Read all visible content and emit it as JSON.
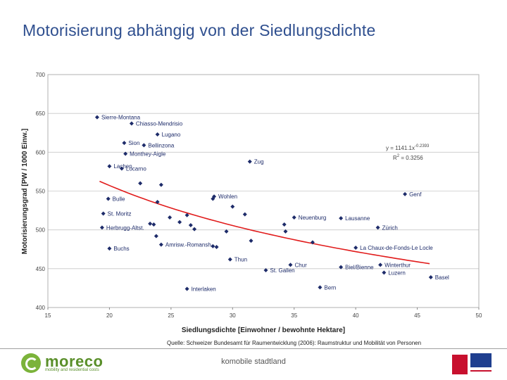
{
  "page": {
    "title": "Motorisierung abhängig von der Siedlungsdichte",
    "source": "Quelle: Schweizer Bundesamt für Raumentwicklung (2006): Raumstruktur und Mobilität von Personen",
    "footer_center": "komobile stadtland",
    "logo_left_text": "moreco",
    "logo_left_sub": "mobility and residential costs"
  },
  "colors": {
    "title": "#2f4f8f",
    "points": "#1e2c6a",
    "trend": "#e11b1b",
    "grid": "#c8c8c8"
  },
  "chart_data": {
    "type": "scatter",
    "xlabel": "Siedlungsdichte [Einwohner / bewohnte Hektare]",
    "ylabel": "Motorisierungsgrad [PW / 1000 Einw.]",
    "xlim": [
      15,
      50
    ],
    "ylim": [
      400,
      700
    ],
    "x_ticks": [
      15,
      20,
      25,
      30,
      35,
      40,
      45,
      50
    ],
    "y_ticks": [
      400,
      450,
      500,
      550,
      600,
      650,
      700
    ],
    "grid": "horizontal",
    "equation": "y = 1141.1x",
    "equation_exp": "-0.2393",
    "r2": "R",
    "r2_sup": "2",
    "r2_value": " = 0.3256",
    "trendline": {
      "a": 1141.1,
      "b": -0.2393,
      "x_from": 19.2,
      "x_to": 46.0
    },
    "points": [
      {
        "x": 19.0,
        "y": 645,
        "label": "Sierre-Montana"
      },
      {
        "x": 21.8,
        "y": 637,
        "label": "Chiasso-Mendrisio"
      },
      {
        "x": 23.9,
        "y": 623,
        "label": "Lugano"
      },
      {
        "x": 21.2,
        "y": 612,
        "label": "Sion"
      },
      {
        "x": 22.8,
        "y": 609,
        "label": "Bellinzona"
      },
      {
        "x": 21.3,
        "y": 598,
        "label": "Monthey-Aigle"
      },
      {
        "x": 20.0,
        "y": 582,
        "label": "Lachen"
      },
      {
        "x": 21.0,
        "y": 579,
        "label": "Locarno"
      },
      {
        "x": 31.4,
        "y": 588,
        "label": "Zug"
      },
      {
        "x": 22.5,
        "y": 560,
        "label": ""
      },
      {
        "x": 24.2,
        "y": 558,
        "label": ""
      },
      {
        "x": 19.9,
        "y": 540,
        "label": "Bulle"
      },
      {
        "x": 23.9,
        "y": 536,
        "label": ""
      },
      {
        "x": 28.5,
        "y": 543,
        "label": "Wohlen"
      },
      {
        "x": 28.4,
        "y": 540,
        "label": ""
      },
      {
        "x": 30.0,
        "y": 530,
        "label": ""
      },
      {
        "x": 44.0,
        "y": 546,
        "label": "Genf"
      },
      {
        "x": 19.5,
        "y": 521,
        "label": "St. Moritz"
      },
      {
        "x": 26.3,
        "y": 519,
        "label": ""
      },
      {
        "x": 31.0,
        "y": 520,
        "label": ""
      },
      {
        "x": 35.0,
        "y": 516,
        "label": "Neuenburg"
      },
      {
        "x": 38.8,
        "y": 515,
        "label": "Lausanne"
      },
      {
        "x": 19.4,
        "y": 503,
        "label": "Herbrugg-Altst."
      },
      {
        "x": 23.3,
        "y": 508,
        "label": ""
      },
      {
        "x": 23.6,
        "y": 507,
        "label": ""
      },
      {
        "x": 24.9,
        "y": 516,
        "label": ""
      },
      {
        "x": 25.7,
        "y": 510,
        "label": ""
      },
      {
        "x": 26.6,
        "y": 506,
        "label": ""
      },
      {
        "x": 26.9,
        "y": 501,
        "label": ""
      },
      {
        "x": 29.5,
        "y": 498,
        "label": ""
      },
      {
        "x": 34.2,
        "y": 507,
        "label": ""
      },
      {
        "x": 34.3,
        "y": 498,
        "label": ""
      },
      {
        "x": 41.8,
        "y": 503,
        "label": "Zürich"
      },
      {
        "x": 23.8,
        "y": 492,
        "label": ""
      },
      {
        "x": 24.2,
        "y": 481,
        "label": "Amrisw.-Romansh."
      },
      {
        "x": 28.4,
        "y": 479,
        "label": ""
      },
      {
        "x": 28.7,
        "y": 478,
        "label": ""
      },
      {
        "x": 31.5,
        "y": 486,
        "label": ""
      },
      {
        "x": 36.5,
        "y": 484,
        "label": ""
      },
      {
        "x": 40.0,
        "y": 477,
        "label": "La Chaux-de-Fonds-Le Locle"
      },
      {
        "x": 20.0,
        "y": 476,
        "label": "Buchs"
      },
      {
        "x": 29.8,
        "y": 462,
        "label": "Thun"
      },
      {
        "x": 34.7,
        "y": 455,
        "label": "Chur"
      },
      {
        "x": 38.8,
        "y": 452,
        "label": "Biel/Bienne"
      },
      {
        "x": 42.0,
        "y": 455,
        "label": "Winterthur"
      },
      {
        "x": 32.7,
        "y": 448,
        "label": "St. Gallen"
      },
      {
        "x": 42.3,
        "y": 445,
        "label": "Luzern"
      },
      {
        "x": 46.1,
        "y": 439,
        "label": "Basel"
      },
      {
        "x": 26.3,
        "y": 424,
        "label": "Interlaken"
      },
      {
        "x": 37.1,
        "y": 426,
        "label": "Bern"
      }
    ]
  }
}
